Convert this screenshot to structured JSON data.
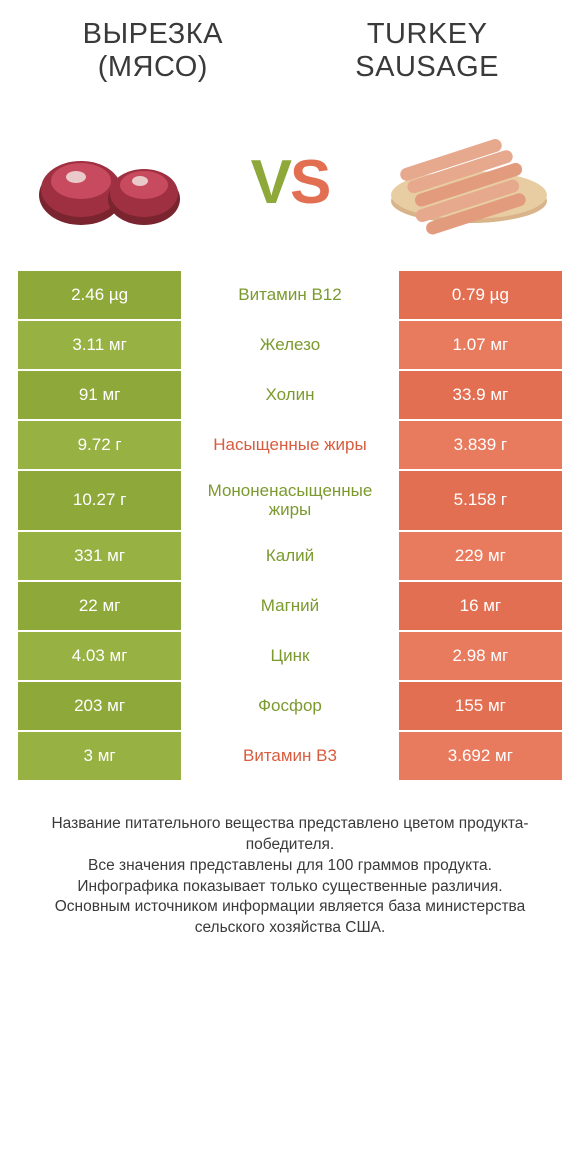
{
  "header": {
    "left_title": "ВЫРЕЗКА (МЯСО)",
    "right_title": "TURKEY SAUSAGE",
    "vs_v": "V",
    "vs_s": "S"
  },
  "colors": {
    "left_bg": "#8fa83a",
    "right_bg": "#e36f52",
    "left_bg_alt": "#97b142",
    "right_bg_alt": "#e87a5e",
    "mid_text_left_win": "#7b9a2e",
    "mid_text_right_win": "#d85c3e",
    "footer_text": "#3a3a3a"
  },
  "rows": [
    {
      "left": "2.46 µg",
      "label": "Витамин B12",
      "right": "0.79 µg",
      "winner": "left"
    },
    {
      "left": "3.11 мг",
      "label": "Железо",
      "right": "1.07 мг",
      "winner": "left"
    },
    {
      "left": "91 мг",
      "label": "Холин",
      "right": "33.9 мг",
      "winner": "left"
    },
    {
      "left": "9.72 г",
      "label": "Насыщенные жиры",
      "right": "3.839 г",
      "winner": "right"
    },
    {
      "left": "10.27 г",
      "label": "Мононенасыщенные жиры",
      "right": "5.158 г",
      "winner": "left"
    },
    {
      "left": "331 мг",
      "label": "Калий",
      "right": "229 мг",
      "winner": "left"
    },
    {
      "left": "22 мг",
      "label": "Магний",
      "right": "16 мг",
      "winner": "left"
    },
    {
      "left": "4.03 мг",
      "label": "Цинк",
      "right": "2.98 мг",
      "winner": "left"
    },
    {
      "left": "203 мг",
      "label": "Фосфор",
      "right": "155 мг",
      "winner": "left"
    },
    {
      "left": "3 мг",
      "label": "Витамин B3",
      "right": "3.692 мг",
      "winner": "right"
    }
  ],
  "footer": {
    "line1": "Название питательного вещества представлено цветом продукта-победителя.",
    "line2": "Все значения представлены для 100 граммов продукта.",
    "line3": "Инфографика показывает только существенные различия.",
    "line4": "Основным источником информации является база министерства сельского хозяйства США."
  }
}
